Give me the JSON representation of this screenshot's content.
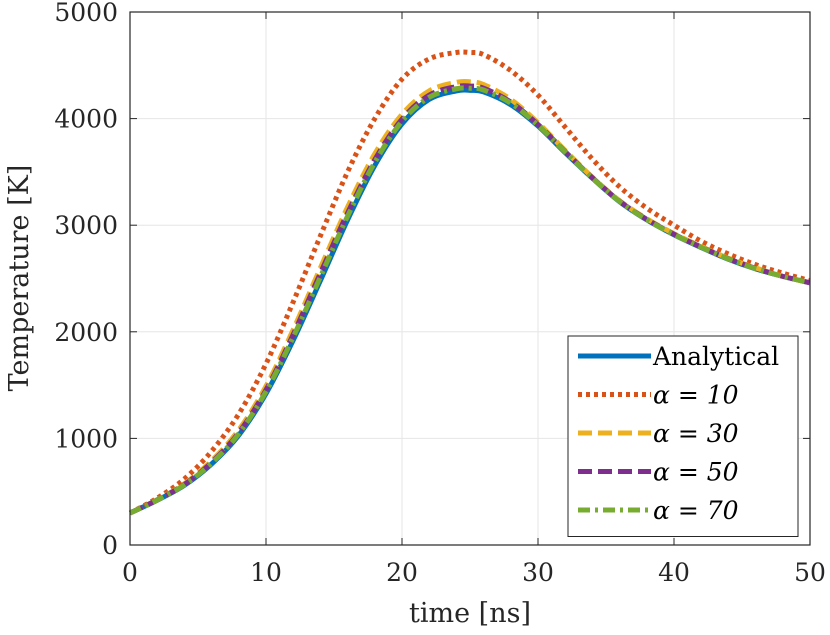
{
  "chart_data": {
    "type": "line",
    "xlabel": "time [ns]",
    "ylabel": "Temperature [K]",
    "xlim": [
      0,
      50
    ],
    "ylim": [
      0,
      5000
    ],
    "xticks": [
      "0",
      "10",
      "20",
      "30",
      "40",
      "50"
    ],
    "yticks": [
      "0",
      "1000",
      "2000",
      "3000",
      "4000",
      "5000"
    ],
    "grid": true,
    "legend_position": "bottom-right",
    "x": [
      0,
      2,
      4,
      6,
      8,
      10,
      12,
      14,
      16,
      18,
      20,
      22,
      24,
      25,
      26,
      28,
      30,
      32,
      34,
      36,
      38,
      40,
      42,
      44,
      46,
      48,
      50
    ],
    "series": [
      {
        "name": "Analytical",
        "color": "#0072BD",
        "style": "solid",
        "values": [
          300,
          420,
          560,
          760,
          1030,
          1420,
          1920,
          2480,
          3050,
          3560,
          3950,
          4180,
          4260,
          4265,
          4250,
          4130,
          3930,
          3680,
          3440,
          3220,
          3050,
          2910,
          2790,
          2680,
          2590,
          2520,
          2460
        ]
      },
      {
        "name": "α = 10",
        "color": "#D95319",
        "style": "dotted",
        "values": [
          300,
          440,
          620,
          880,
          1230,
          1700,
          2280,
          2900,
          3500,
          4000,
          4370,
          4560,
          4620,
          4620,
          4600,
          4450,
          4220,
          3920,
          3620,
          3360,
          3160,
          3000,
          2850,
          2730,
          2630,
          2550,
          2480
        ]
      },
      {
        "name": "α = 30",
        "color": "#EDB120",
        "style": "dashed",
        "values": [
          300,
          425,
          575,
          790,
          1080,
          1490,
          2020,
          2600,
          3170,
          3670,
          4040,
          4260,
          4340,
          4345,
          4320,
          4180,
          3960,
          3700,
          3450,
          3230,
          3060,
          2920,
          2800,
          2690,
          2600,
          2520,
          2460
        ]
      },
      {
        "name": "α = 50",
        "color": "#7E2F8E",
        "style": "dashed",
        "values": [
          300,
          422,
          568,
          775,
          1055,
          1455,
          1975,
          2550,
          3115,
          3615,
          3995,
          4220,
          4300,
          4305,
          4285,
          4155,
          3945,
          3690,
          3445,
          3225,
          3055,
          2915,
          2795,
          2685,
          2595,
          2520,
          2460
        ]
      },
      {
        "name": "α = 70",
        "color": "#77AC30",
        "style": "dashdot",
        "values": [
          300,
          421,
          565,
          768,
          1045,
          1440,
          1950,
          2515,
          3085,
          3590,
          3975,
          4200,
          4280,
          4285,
          4268,
          4145,
          3938,
          3686,
          3442,
          3222,
          3052,
          2912,
          2793,
          2683,
          2593,
          2520,
          2460
        ]
      }
    ]
  }
}
